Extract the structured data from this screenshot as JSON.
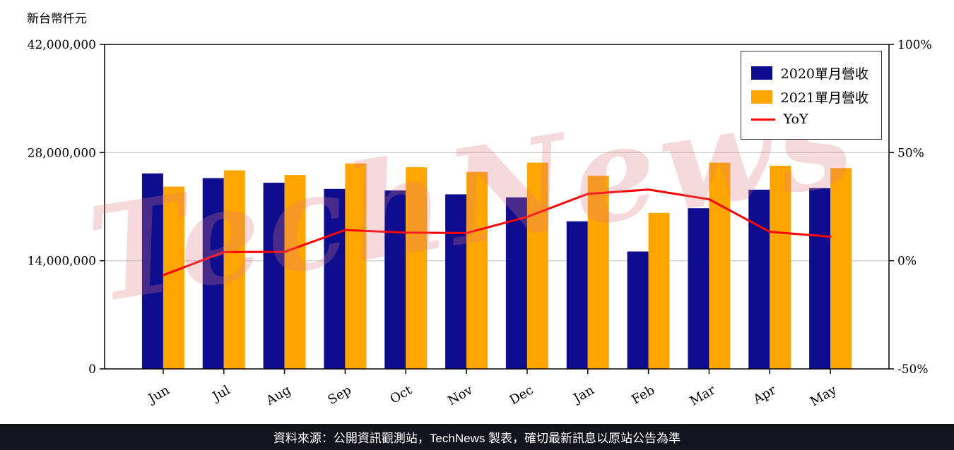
{
  "title": "新台幣仟元",
  "watermark": "TechNews",
  "footer": {
    "text": "資料來源：公開資訊觀測站，TechNews 製表，確切最新訊息以原站公告為準"
  },
  "legend": [
    {
      "label": "2020單月營收",
      "type": "swatch",
      "color": "#0d0d8e"
    },
    {
      "label": "2021單月營收",
      "type": "swatch",
      "color": "#ffa500"
    },
    {
      "label": "YoY",
      "type": "line",
      "color": "#ff0000"
    }
  ],
  "chart_data": {
    "type": "bar",
    "title": "",
    "categories": [
      "Jun",
      "Jul",
      "Aug",
      "Sep",
      "Oct",
      "Nov",
      "Dec",
      "Jan",
      "Feb",
      "Mar",
      "Apr",
      "May"
    ],
    "series": [
      {
        "name": "2020單月營收",
        "color": "#0d0d8e",
        "values": [
          25300000,
          24700000,
          24100000,
          23300000,
          23100000,
          22600000,
          22200000,
          19100000,
          15200000,
          20800000,
          23200000,
          23400000
        ]
      },
      {
        "name": "2021單月營收",
        "color": "#ffa500",
        "values": [
          23600000,
          25700000,
          25100000,
          26600000,
          26100000,
          25500000,
          26700000,
          25000000,
          20200000,
          26700000,
          26300000,
          26000000
        ]
      }
    ],
    "line_series": {
      "name": "YoY",
      "color": "#ff0000",
      "axis": "right",
      "values": [
        -6.7,
        4.0,
        4.1,
        14.2,
        13.0,
        12.8,
        20.3,
        30.9,
        32.9,
        28.4,
        13.4,
        11.1
      ]
    },
    "left_axis": {
      "label": "新台幣仟元",
      "range": [
        0,
        42000000
      ],
      "ticks": [
        0,
        14000000,
        28000000,
        42000000
      ],
      "tick_labels": [
        "0",
        "14,000,000",
        "28,000,000",
        "42,000,000"
      ]
    },
    "right_axis": {
      "range": [
        -50,
        100
      ],
      "ticks": [
        -50,
        0,
        50,
        100
      ],
      "tick_labels": [
        "-50%",
        "0%",
        "50%",
        "100%"
      ]
    },
    "grid": true,
    "legend_position": "top-right"
  }
}
